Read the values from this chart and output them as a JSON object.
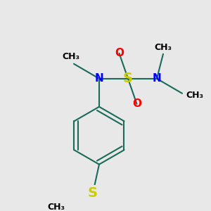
{
  "background_color": "#e8e8e8",
  "bond_color": "#1a6b5a",
  "bond_width": 1.5,
  "atom_colors": {
    "N": "#0000ff",
    "O": "#ff0000",
    "S_sulfonyl": "#cccc00",
    "S_thio": "#cccc00"
  },
  "font_size_atom": 11,
  "font_size_methyl": 9,
  "figsize": [
    3.0,
    3.0
  ],
  "dpi": 100,
  "xlim": [
    -2.5,
    2.5
  ],
  "ylim": [
    -3.0,
    2.2
  ]
}
